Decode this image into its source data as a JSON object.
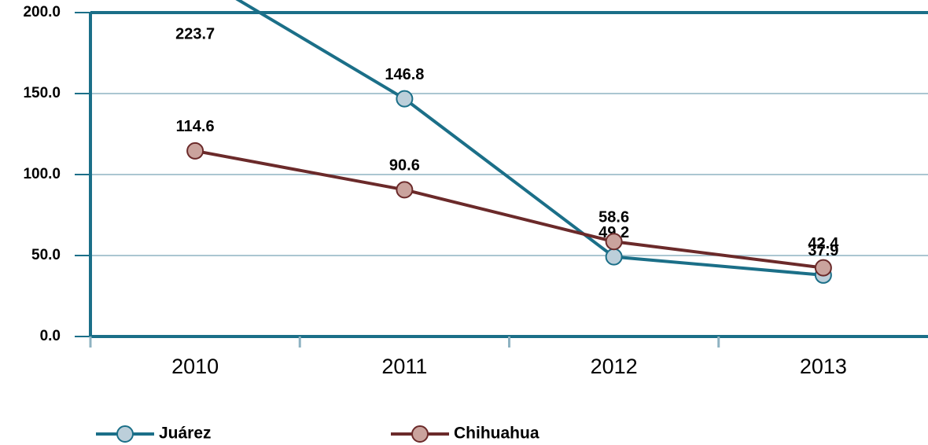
{
  "chart_data": {
    "type": "line",
    "categories": [
      "2010",
      "2011",
      "2012",
      "2013"
    ],
    "series": [
      {
        "name": "Juárez",
        "color": "#1b6f88",
        "marker_color": "#bccfda",
        "values": [
          223.7,
          146.8,
          49.2,
          37.9
        ]
      },
      {
        "name": "Chihuahua",
        "color": "#6b2a2a",
        "marker_color": "#caa39d",
        "values": [
          114.6,
          90.6,
          58.6,
          42.4
        ]
      }
    ],
    "ylim": [
      0,
      200
    ],
    "yticks": [
      {
        "value": 0,
        "label": "0.0"
      },
      {
        "value": 50,
        "label": "50.0"
      },
      {
        "value": 100,
        "label": "100.0"
      },
      {
        "value": 150,
        "label": "150.0"
      },
      {
        "value": 200,
        "label": "200.0"
      }
    ],
    "grid": true,
    "legend": "bottom"
  }
}
